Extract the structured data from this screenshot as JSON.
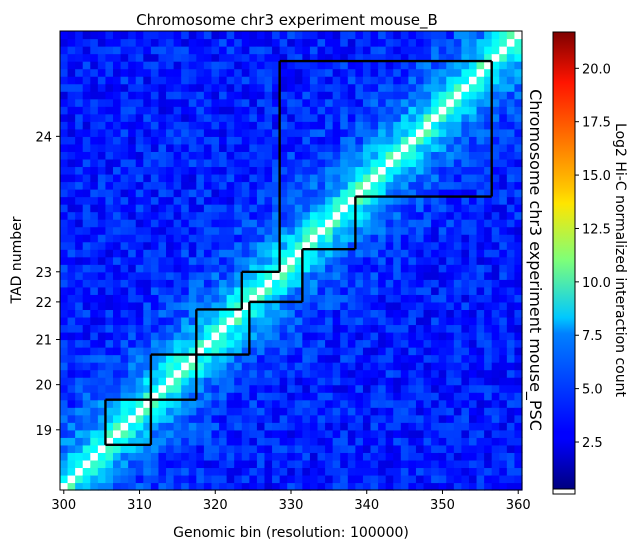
{
  "chart_data": {
    "type": "heatmap",
    "title": "Chromosome chr3 experiment mouse_B",
    "right_title": "Chromosome chr3 experiment mouse_PSC",
    "xlabel": "Genomic bin (resolution: 100000)",
    "ylabel": "TAD number",
    "colorbar_label": "Log2 Hi-C normalized interaction count",
    "colormap": "jet",
    "xlim": [
      299.5,
      360.5
    ],
    "x_ticks": [
      300,
      310,
      320,
      330,
      340,
      350,
      360
    ],
    "y_ticks": [
      {
        "label": "19",
        "bin": 307.5
      },
      {
        "label": "20",
        "bin": 313.5
      },
      {
        "label": "21",
        "bin": 319.5
      },
      {
        "label": "22",
        "bin": 324.5
      },
      {
        "label": "23",
        "bin": 328.5
      },
      {
        "label": "24",
        "bin": 346.5
      }
    ],
    "colorbar": {
      "min": 0.3,
      "max": 21.7,
      "ticks": [
        2.5,
        5.0,
        7.5,
        10.0,
        12.5,
        15.0,
        17.5,
        20.0
      ]
    },
    "tad_bins": [
      {
        "upper_start": 305.5,
        "upper_end": 311.5,
        "lower_start": 305.5,
        "lower_end": 311.5
      },
      {
        "upper_start": 311.5,
        "upper_end": 317.5,
        "lower_start": 311.5,
        "lower_end": 317.5
      },
      {
        "upper_start": 317.5,
        "upper_end": 323.5,
        "lower_start": 317.5,
        "lower_end": 324.5
      },
      {
        "upper_start": 323.5,
        "upper_end": 328.5,
        "lower_start": 324.5,
        "lower_end": 331.5
      },
      {
        "upper_start": 328.5,
        "upper_end": 356.5,
        "lower_start": 331.5,
        "lower_end": 338.5
      },
      {
        "lower_start": 338.5,
        "lower_end": 356.5
      }
    ],
    "masked_cells": [
      [
        301.9,
        301.9
      ],
      [
        344,
        344
      ]
    ],
    "matrix_model": {
      "diagonal_value": "masked",
      "near_diagonal": 10.5,
      "far_value": 3.5,
      "description": "interaction intensity decays with distance from diagonal"
    }
  }
}
